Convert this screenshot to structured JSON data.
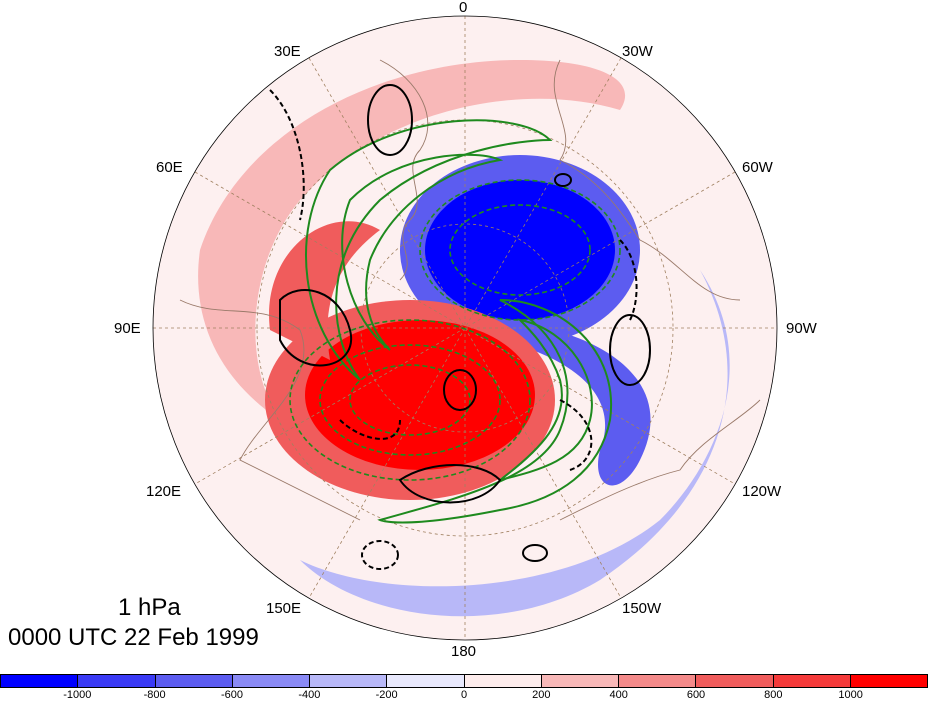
{
  "map": {
    "projection": "north-polar-stereographic",
    "longitude_labels": [
      {
        "id": "lon-0",
        "text": "0"
      },
      {
        "id": "lon-30w",
        "text": "30W"
      },
      {
        "id": "lon-60w",
        "text": "60W"
      },
      {
        "id": "lon-90w",
        "text": "90W"
      },
      {
        "id": "lon-120w",
        "text": "120W"
      },
      {
        "id": "lon-150w",
        "text": "150W"
      },
      {
        "id": "lon-180",
        "text": "180"
      },
      {
        "id": "lon-150e",
        "text": "150E"
      },
      {
        "id": "lon-120e",
        "text": "120E"
      },
      {
        "id": "lon-90e",
        "text": "90E"
      },
      {
        "id": "lon-60e",
        "text": "60E"
      },
      {
        "id": "lon-30e",
        "text": "30E"
      }
    ],
    "colors": {
      "coastline": "#9a7a6a",
      "graticule": "#a08060",
      "contour_positive": "#000000",
      "contour_negative_dashed": "#000000",
      "green_contours": "#1e8a1e"
    }
  },
  "annotation": {
    "level": "1 hPa",
    "time": "0000 UTC 22 Feb 1999"
  },
  "colorbar": {
    "colors": [
      "#0000ff",
      "#3a3af5",
      "#5c5cf0",
      "#8a8af5",
      "#b8b8f8",
      "#e8e8fc",
      "#fdecec",
      "#f8b8b8",
      "#f48a8a",
      "#f05c5c",
      "#f53a3a",
      "#ff0000"
    ],
    "tick_labels": [
      "-1000",
      "-800",
      "-600",
      "-400",
      "-200",
      "0",
      "200",
      "400",
      "600",
      "800",
      "1000"
    ]
  }
}
